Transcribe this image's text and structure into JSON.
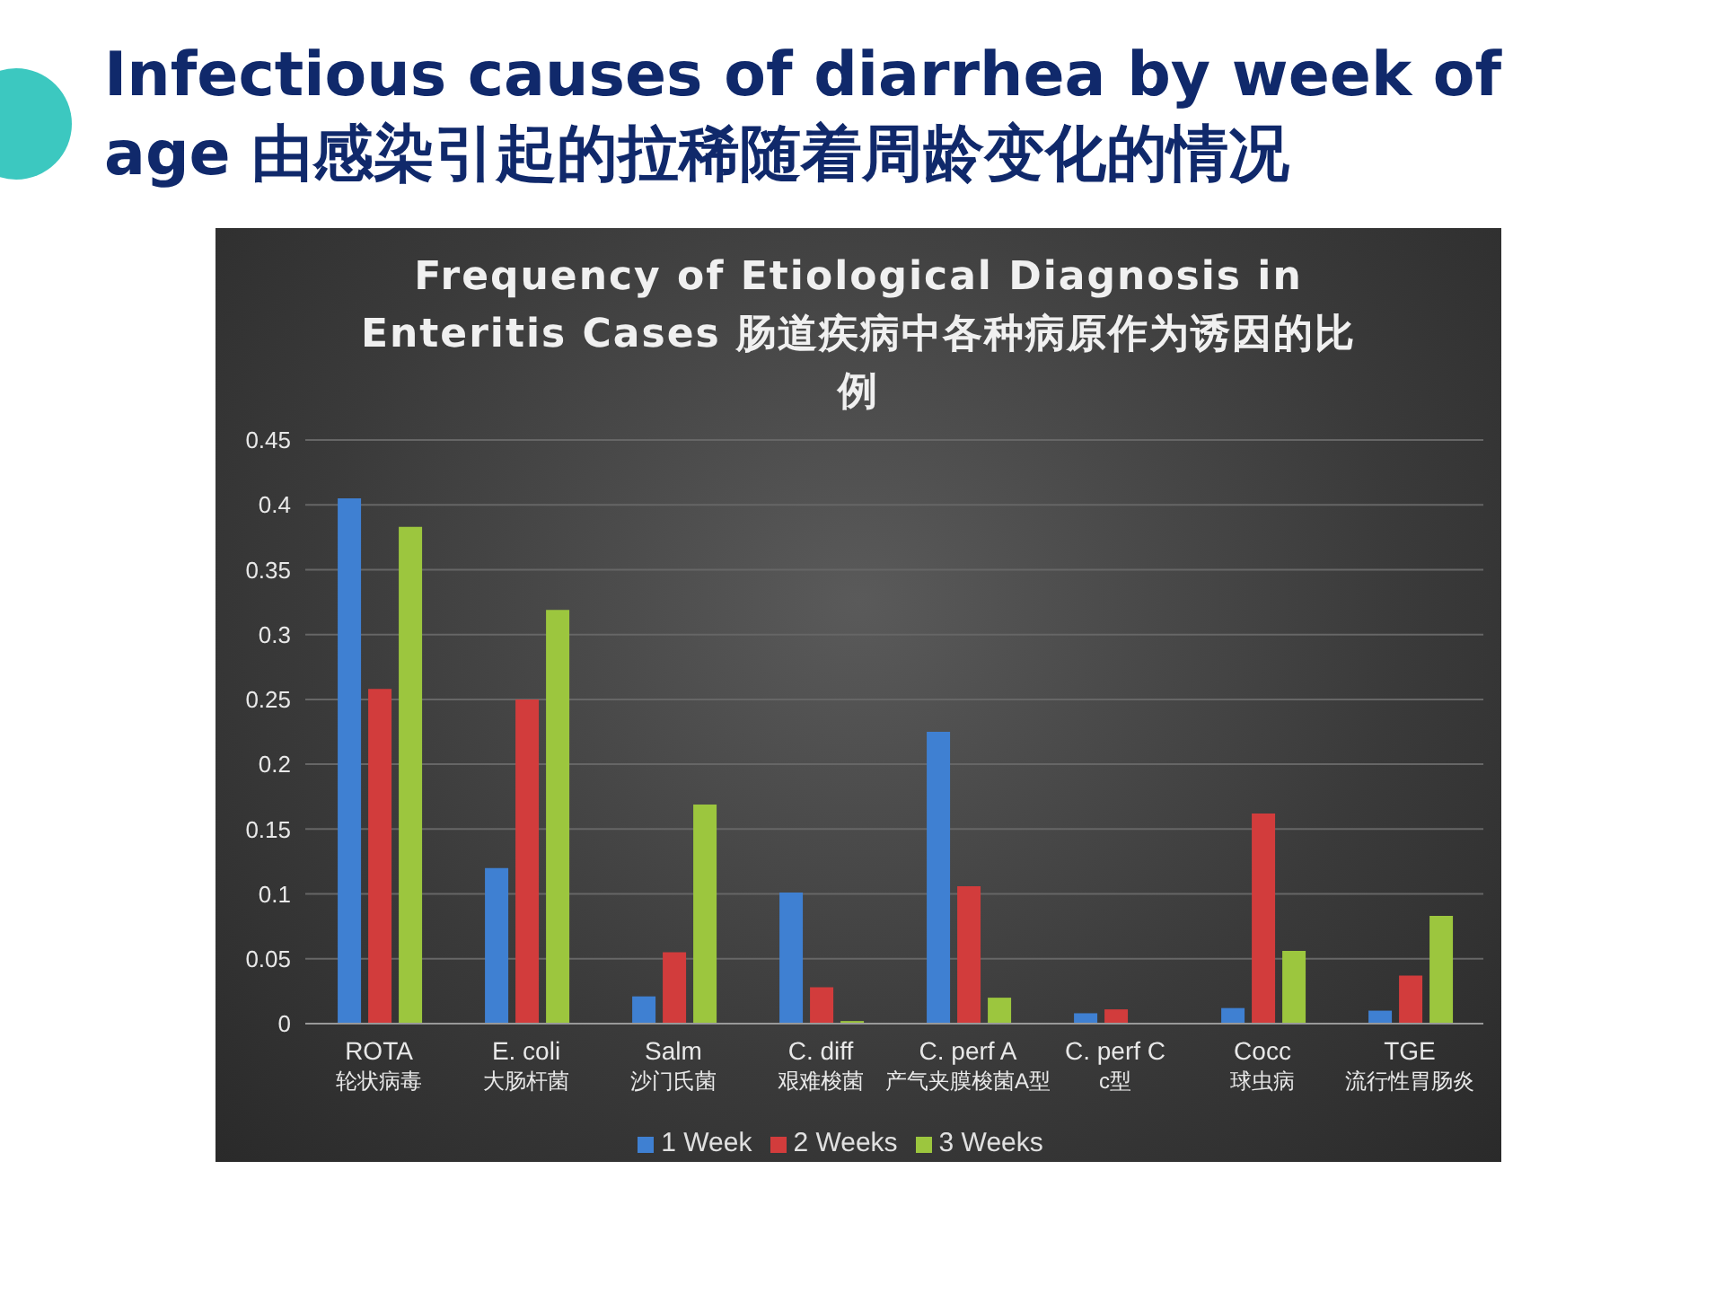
{
  "chart_data": {
    "type": "bar",
    "title": "Infectious causes of diarrhea by week of age  由感染引起的拉稀随着周龄变化的情况",
    "subtitle": "Frequency of Etiological Diagnosis in Enteritis Cases 肠道疾病中各种病原作为诱因的比例",
    "categories": [
      "ROTA\n轮状病毒",
      "E. coli\n大肠杆菌",
      "Salm\n沙门氏菌",
      "C. diff\n艰难梭菌",
      "C. perf A\n产气夹膜梭菌A型",
      "C. perf C\nc型",
      "Cocc\n球虫病",
      "TGE\n流行性胃肠炎"
    ],
    "series": [
      {
        "name": "1 Week",
        "color": "#3f80d2",
        "values": [
          0.405,
          0.12,
          0.021,
          0.101,
          0.225,
          0.008,
          0.012,
          0.01
        ]
      },
      {
        "name": "2 Weeks",
        "color": "#d23c3c",
        "values": [
          0.258,
          0.25,
          0.055,
          0.028,
          0.106,
          0.011,
          0.162,
          0.037
        ]
      },
      {
        "name": "3 Weeks",
        "color": "#9cc63e",
        "values": [
          0.383,
          0.319,
          0.169,
          0.002,
          0.02,
          0,
          0.056,
          0.083
        ]
      }
    ],
    "ylim": [
      0,
      0.45
    ],
    "yticks": [
      0,
      0.05,
      0.1,
      0.15,
      0.2,
      0.25,
      0.3,
      0.35,
      0.4,
      0.45
    ],
    "grid": "y",
    "legend": "bottom"
  }
}
